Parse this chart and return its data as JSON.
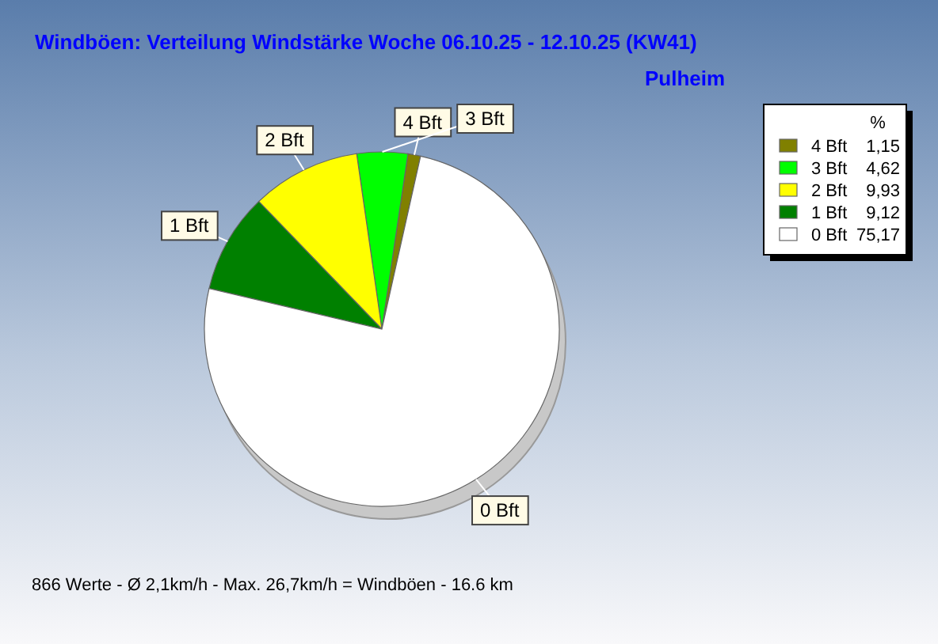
{
  "chart_data": {
    "type": "pie",
    "title": "Windböen: Verteilung Windstärke  Woche 06.10.25 - 12.10.25 (KW41)",
    "subtitle": "Pulheim",
    "categories": [
      "4 Bft",
      "3 Bft",
      "2 Bft",
      "1 Bft",
      "0 Bft"
    ],
    "values": [
      1.15,
      4.62,
      9.93,
      9.12,
      75.17
    ],
    "colors": [
      "#808000",
      "#00ff00",
      "#ffff00",
      "#008000",
      "#ffffff"
    ],
    "value_labels": [
      "1,15",
      "4,62",
      "9,93",
      "9,12",
      "75,17"
    ],
    "legend": "top right",
    "legend_title": "%",
    "data_labels": true,
    "annotations": [
      "866 Werte   -   Ø 2,1km/h  -  Max. 26,7km/h = Windböen   -   16.6 km"
    ]
  }
}
